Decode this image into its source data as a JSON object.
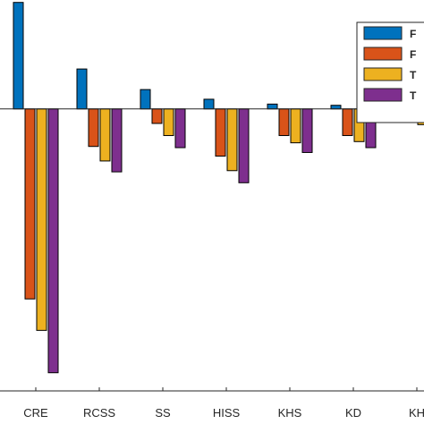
{
  "chart_data": {
    "type": "bar",
    "categories": [
      "CRE",
      "RCSS",
      "SS",
      "HISS",
      "KHS",
      "KD",
      "KH"
    ],
    "series": [
      {
        "name": "F",
        "color": "#0072BD",
        "values": [
          0.88,
          0.33,
          0.16,
          0.08,
          0.04,
          0.03,
          0.06
        ]
      },
      {
        "name": "F",
        "color": "#D95319",
        "values": [
          -1.57,
          -0.31,
          -0.12,
          -0.39,
          -0.22,
          -0.22,
          -0.11
        ]
      },
      {
        "name": "T",
        "color": "#EDB120",
        "values": [
          -1.83,
          -0.43,
          -0.22,
          -0.51,
          -0.28,
          -0.27,
          -0.13
        ]
      },
      {
        "name": "T",
        "color": "#7E2F8E",
        "values": [
          -2.18,
          -0.52,
          -0.32,
          -0.61,
          -0.36,
          -0.32,
          -0.16
        ]
      }
    ],
    "ylim": [
      -2.33,
      0.9
    ],
    "grid": false,
    "legend": "top-right"
  }
}
